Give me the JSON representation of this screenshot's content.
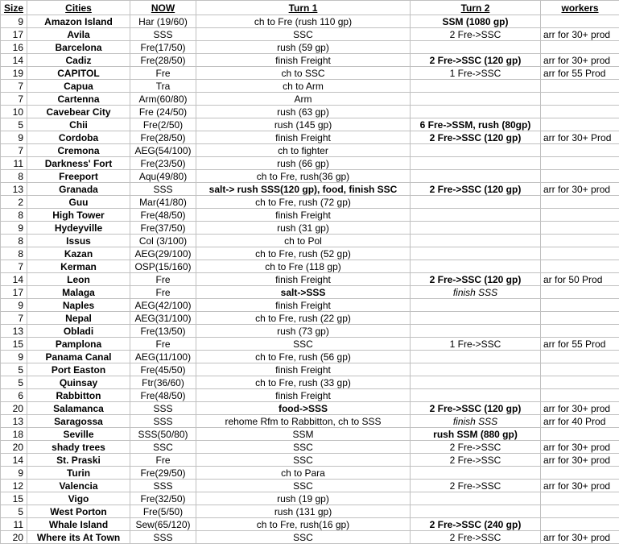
{
  "table": {
    "headers": [
      "Size",
      "Cities",
      "NOW",
      "Turn 1",
      "Turn 2",
      "workers"
    ],
    "rows": [
      [
        9,
        "Amazon Island",
        "Har (19/60)",
        "ch to Fre (rush 110 gp)",
        "SSM (1080 gp)",
        ""
      ],
      [
        17,
        "Avila",
        "SSS",
        "SSC",
        "2 Fre->SSC",
        "arr for 30+ prod"
      ],
      [
        16,
        "Barcelona",
        "Fre(17/50)",
        "rush (59 gp)",
        "",
        ""
      ],
      [
        14,
        "Cadiz",
        "Fre(28/50)",
        "finish Freight",
        "2 Fre->SSC (120 gp)",
        "arr for 30+ prod"
      ],
      [
        19,
        "CAPITOL",
        "Fre",
        "ch to SSC",
        "1 Fre->SSC",
        "arr for 55 Prod"
      ],
      [
        7,
        "Capua",
        "Tra",
        "ch to Arm",
        "",
        ""
      ],
      [
        7,
        "Cartenna",
        "Arm(60/80)",
        "Arm",
        "",
        ""
      ],
      [
        10,
        "Cavebear City",
        "Fre (24/50)",
        "rush (63 gp)",
        "",
        ""
      ],
      [
        5,
        "Chii",
        "Fre(2/50)",
        "rush (145 gp)",
        "6 Fre->SSM, rush (80gp)",
        ""
      ],
      [
        9,
        "Cordoba",
        "Fre(28/50)",
        "finish Freight",
        "2 Fre->SSC (120 gp)",
        "arr for 30+ Prod"
      ],
      [
        7,
        "Cremona",
        "AEG(54/100)",
        "ch to fighter",
        "",
        ""
      ],
      [
        11,
        "Darkness' Fort",
        "Fre(23/50)",
        "rush (66 gp)",
        "",
        ""
      ],
      [
        8,
        "Freeport",
        "Aqu(49/80)",
        "ch to Fre, rush(36 gp)",
        "",
        ""
      ],
      [
        13,
        "Granada",
        "SSS",
        "salt-> rush SSS(120 gp), food, finish SSC",
        "2 Fre->SSC (120 gp)",
        "arr for 30+ prod"
      ],
      [
        2,
        "Guu",
        "Mar(41/80)",
        "ch to Fre, rush (72 gp)",
        "",
        ""
      ],
      [
        8,
        "High Tower",
        "Fre(48/50)",
        "finish Freight",
        "",
        ""
      ],
      [
        9,
        "Hydeyville",
        "Fre(37/50)",
        "rush (31 gp)",
        "",
        ""
      ],
      [
        8,
        "Issus",
        "Col (3/100)",
        "ch to Pol",
        "",
        ""
      ],
      [
        8,
        "Kazan",
        "AEG(29/100)",
        "ch to Fre, rush (52 gp)",
        "",
        ""
      ],
      [
        7,
        "Kerman",
        "OSP(15/160)",
        "ch to Fre (118 gp)",
        "",
        ""
      ],
      [
        14,
        "Leon",
        "Fre",
        "finish Freight",
        "2 Fre->SSC (120 gp)",
        "ar for 50 Prod"
      ],
      [
        17,
        "Malaga",
        "Fre",
        "salt->SSS",
        "finish SSS",
        ""
      ],
      [
        9,
        "Naples",
        "AEG(42/100)",
        "finish Freight",
        "",
        ""
      ],
      [
        7,
        "Nepal",
        "AEG(31/100)",
        "ch to Fre, rush (22 gp)",
        "",
        ""
      ],
      [
        13,
        "Obladi",
        "Fre(13/50)",
        "rush (73 gp)",
        "",
        ""
      ],
      [
        15,
        "Pamplona",
        "Fre",
        "SSC",
        "1 Fre->SSC",
        "arr for 55 Prod"
      ],
      [
        9,
        "Panama Canal",
        "AEG(11/100)",
        "ch to Fre, rush (56 gp)",
        "",
        ""
      ],
      [
        5,
        "Port Easton",
        "Fre(45/50)",
        "finish Freight",
        "",
        ""
      ],
      [
        5,
        "Quinsay",
        "Ftr(36/60)",
        "ch to Fre, rush (33 gp)",
        "",
        ""
      ],
      [
        6,
        "Rabbitton",
        "Fre(48/50)",
        "finish Freight",
        "",
        ""
      ],
      [
        20,
        "Salamanca",
        "SSS",
        "food->SSS",
        "2 Fre->SSC (120 gp)",
        "arr for 30+ prod"
      ],
      [
        13,
        "Saragossa",
        "SSS",
        "rehome Rfm to Rabbitton, ch to SSS",
        "finish SSS",
        "arr for 40 Prod"
      ],
      [
        18,
        "Seville",
        "SSS(50/80)",
        "SSM",
        "rush SSM (880 gp)",
        ""
      ],
      [
        20,
        "shady trees",
        "SSC",
        "SSC",
        "2 Fre->SSC",
        "arr for 30+ prod"
      ],
      [
        14,
        "St. Praski",
        "Fre",
        "SSC",
        "2 Fre->SSC",
        "arr for 30+ prod"
      ],
      [
        9,
        "Turin",
        "Fre(29/50)",
        "ch to Para",
        "",
        ""
      ],
      [
        12,
        "Valencia",
        "SSS",
        "SSC",
        "2 Fre->SSC",
        "arr for 30+ prod"
      ],
      [
        15,
        "Vigo",
        "Fre(32/50)",
        "rush (19 gp)",
        "",
        ""
      ],
      [
        5,
        "West Porton",
        "Fre(5/50)",
        "rush (131 gp)",
        "",
        ""
      ],
      [
        11,
        "Whale Island",
        "Sew(65/120)",
        "ch to Fre, rush(16 gp)",
        "2 Fre->SSC (240 gp)",
        ""
      ],
      [
        20,
        "Where its At Town",
        "SSS",
        "SSC",
        "2 Fre->SSC",
        "arr for 30+ prod"
      ]
    ]
  }
}
